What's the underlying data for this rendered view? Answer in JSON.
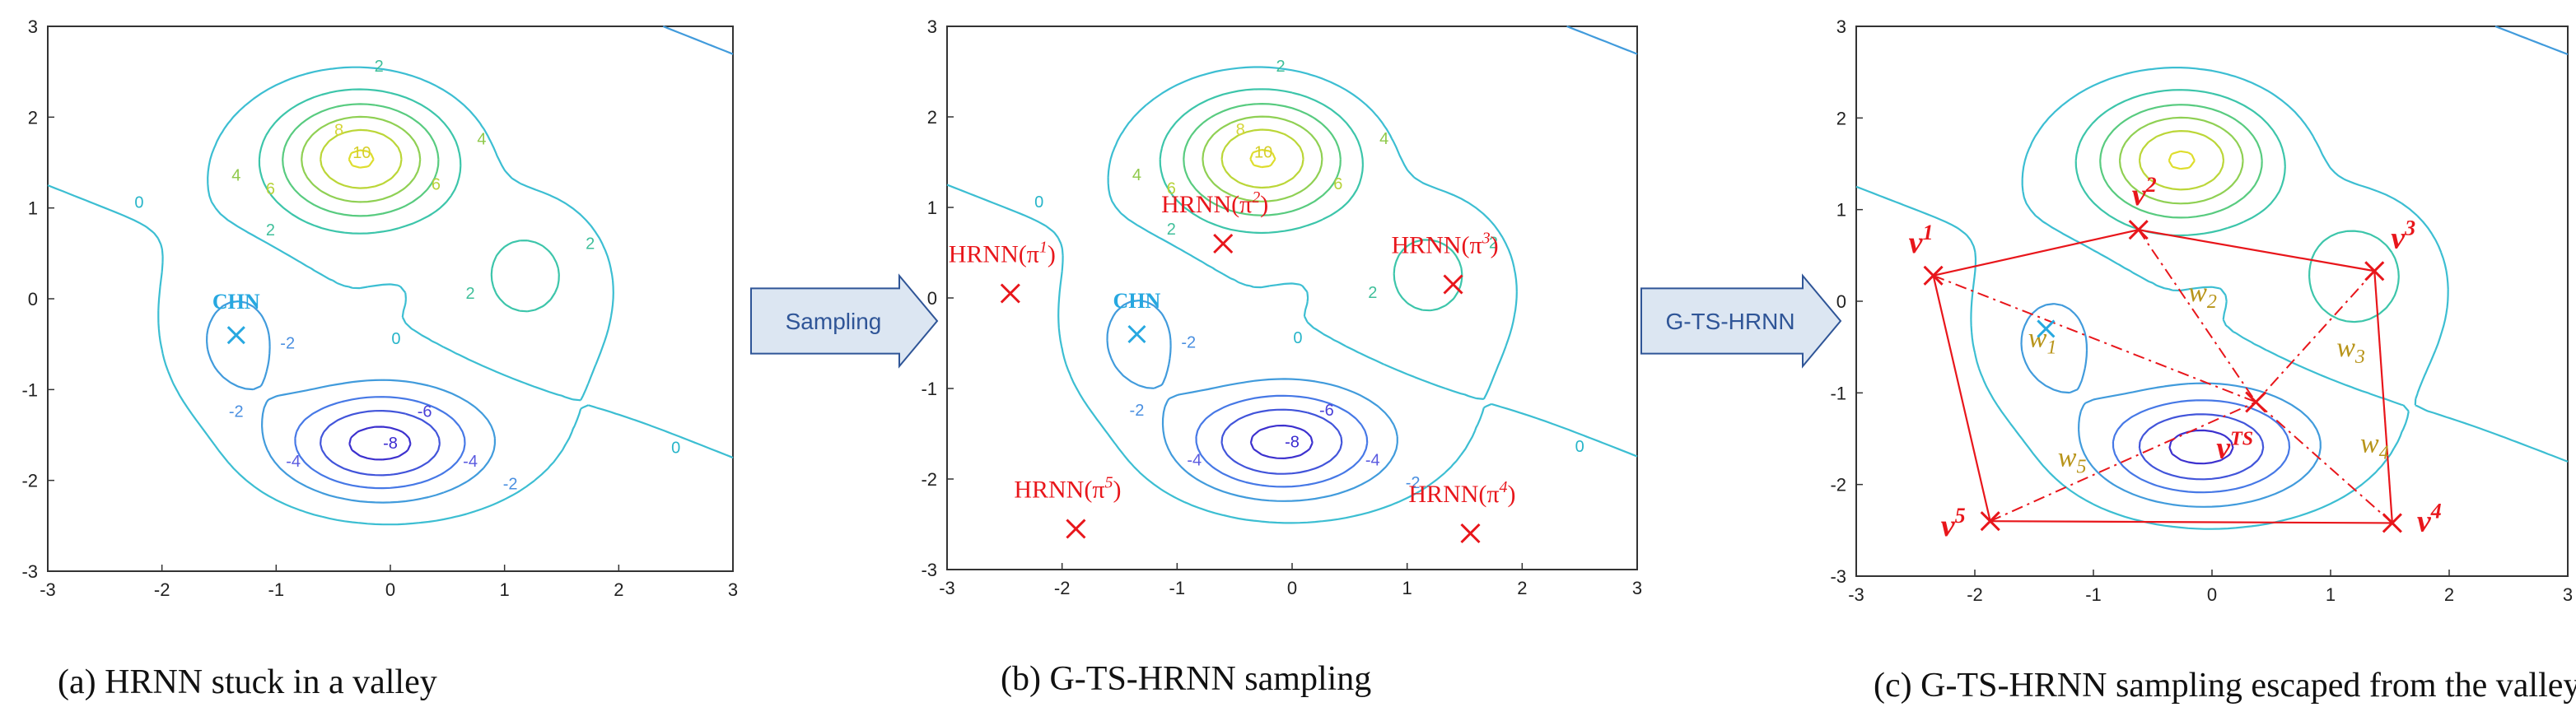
{
  "panels": [
    {
      "id": "a",
      "caption": "(a)  HRNN stuck in a valley",
      "xlim": [
        -3,
        3
      ],
      "ylim": [
        -3,
        3
      ],
      "ticks": [
        -3,
        -2,
        -1,
        0,
        1,
        2,
        3
      ],
      "chn": {
        "label": "CHN",
        "x": -1.35,
        "y": -0.4
      },
      "samples": [],
      "graph": false
    },
    {
      "id": "b",
      "caption": "(b) G-TS-HRNN sampling",
      "xlim": [
        -3,
        3
      ],
      "ylim": [
        -3,
        3
      ],
      "ticks": [
        -3,
        -2,
        -1,
        0,
        1,
        2,
        3
      ],
      "chn": {
        "label": "CHN",
        "x": -1.35,
        "y": -0.4
      },
      "samples": [
        {
          "label": "HRNN(π",
          "sup": "1",
          "x": -2.45,
          "y": 0.05
        },
        {
          "label": "HRNN(π",
          "sup": "2",
          "x": -0.6,
          "y": 0.6
        },
        {
          "label": "HRNN(π",
          "sup": "3",
          "x": 1.4,
          "y": 0.15
        },
        {
          "label": "HRNN(π",
          "sup": "4",
          "x": 1.55,
          "y": -2.6
        },
        {
          "label": "HRNN(π",
          "sup": "5",
          "x": -1.88,
          "y": -2.55
        }
      ],
      "graph": false
    },
    {
      "id": "c",
      "caption": "(c)  G-TS-HRNN sampling escaped from the valley",
      "xlim": [
        -3,
        3
      ],
      "ylim": [
        -3,
        3
      ],
      "ticks": [
        -3,
        -2,
        -1,
        0,
        1,
        2,
        3
      ],
      "chn": {
        "label": "",
        "x": -1.4,
        "y": -0.3
      },
      "vertices": [
        {
          "label": "v",
          "sup": "1",
          "x": -2.35,
          "y": 0.28
        },
        {
          "label": "v",
          "sup": "2",
          "x": -0.62,
          "y": 0.78
        },
        {
          "label": "v",
          "sup": "3",
          "x": 1.37,
          "y": 0.33
        },
        {
          "label": "v",
          "sup": "4",
          "x": 1.52,
          "y": -2.42
        },
        {
          "label": "v",
          "sup": "5",
          "x": -1.87,
          "y": -2.4
        }
      ],
      "ts": {
        "label": "v",
        "sup": "TS",
        "x": 0.37,
        "y": -1.1
      },
      "weights": [
        "w",
        "w",
        "w",
        "w",
        "w"
      ],
      "weight_subs": [
        "1",
        "2",
        "3",
        "4",
        "5"
      ],
      "graph": true
    }
  ],
  "arrows": [
    {
      "label": "Sampling"
    },
    {
      "label": "G-TS-HRNN"
    }
  ],
  "contour_labels": {
    "pos": [
      "2",
      "4",
      "6",
      "8",
      "10"
    ],
    "neg": [
      "-2",
      "-4",
      "-6",
      "-8"
    ],
    "zero": "0"
  },
  "colors": {
    "red": "#e8161b",
    "blue": "#27a8e0",
    "gold": "#b8941a",
    "arrow_fill": "#dce6f2",
    "arrow_stroke": "#2f5597"
  }
}
